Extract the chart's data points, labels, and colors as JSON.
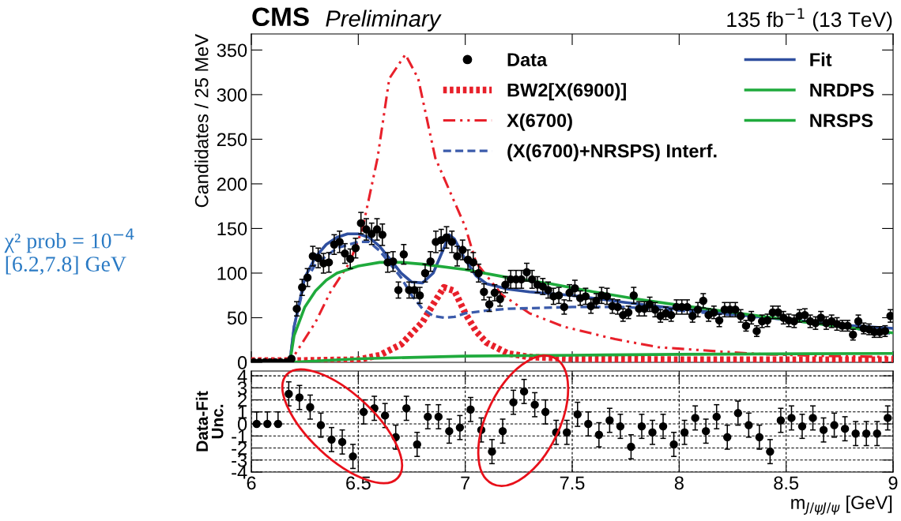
{
  "chart_data": [
    {
      "type": "line",
      "title": "CMS",
      "subtitle": "Preliminary",
      "ylabel": "Candidates / 25 MeV",
      "annotations": [
        "135 fb$^{−1}$ (13 TeV)",
        "χ² prob = 10$^{−4}$",
        "[6.2,7.8] GeV"
      ],
      "xlim": [
        6,
        9
      ],
      "xticks": [
        6,
        6.5,
        7,
        7.5,
        8,
        8.5,
        9
      ],
      "ylim": [
        0,
        368
      ],
      "yticks": [
        0,
        50,
        100,
        150,
        200,
        250,
        300,
        350
      ],
      "tick_labels": "y",
      "legend": "top right",
      "grid": false,
      "series": [
        {
          "name": "Data",
          "type": "scatter",
          "marker": "circle",
          "color": "#000000",
          "x": [
            6.0125,
            6.0375,
            6.0625,
            6.0875,
            6.1125,
            6.1375,
            6.1625,
            6.1875,
            6.2125,
            6.2375,
            6.2625,
            6.2875,
            6.3125,
            6.3375,
            6.3625,
            6.3875,
            6.4125,
            6.4375,
            6.4625,
            6.4875,
            6.5125,
            6.5375,
            6.5625,
            6.5875,
            6.6125,
            6.6375,
            6.6625,
            6.6875,
            6.7125,
            6.7375,
            6.7625,
            6.7875,
            6.8125,
            6.8375,
            6.8625,
            6.8875,
            6.9125,
            6.9375,
            6.9625,
            6.9875,
            7.0125,
            7.0375,
            7.0625,
            7.0875,
            7.1125,
            7.1375,
            7.1625,
            7.1875,
            7.2125,
            7.2375,
            7.2625,
            7.2875,
            7.3125,
            7.3375,
            7.3625,
            7.3875,
            7.4125,
            7.4375,
            7.4625,
            7.4875,
            7.5125,
            7.5375,
            7.5625,
            7.5875,
            7.6125,
            7.6375,
            7.6625,
            7.6875,
            7.7125,
            7.7375,
            7.7625,
            7.7875,
            7.8125,
            7.8375,
            7.8625,
            7.8875,
            7.9125,
            7.9375,
            7.9625,
            7.9875,
            8.0125,
            8.0375,
            8.0625,
            8.0875,
            8.1125,
            8.1375,
            8.1625,
            8.1875,
            8.2125,
            8.2375,
            8.2625,
            8.2875,
            8.3125,
            8.3375,
            8.3625,
            8.3875,
            8.4125,
            8.4375,
            8.4625,
            8.4875,
            8.5125,
            8.5375,
            8.5625,
            8.5875,
            8.6125,
            8.6375,
            8.6625,
            8.6875,
            8.7125,
            8.7375,
            8.7625,
            8.7875,
            8.8125,
            8.8375,
            8.8625,
            8.8875,
            8.9125,
            8.9375,
            8.9625,
            8.9875
          ],
          "values": [
            0,
            0,
            0,
            0,
            0,
            0,
            0,
            4,
            60,
            84,
            95,
            119,
            117,
            111,
            112,
            132,
            135,
            122,
            116,
            128,
            156,
            149,
            144,
            149,
            143,
            112,
            113,
            81,
            121,
            81,
            81,
            75,
            100,
            113,
            135,
            137,
            140,
            135,
            119,
            126,
            115,
            112,
            100,
            79,
            65,
            78,
            71,
            87,
            93,
            93,
            93,
            101,
            93,
            87,
            85,
            81,
            74,
            75,
            62,
            78,
            83,
            72,
            74,
            63,
            69,
            75,
            74,
            63,
            62,
            53,
            56,
            75,
            60,
            60,
            65,
            59,
            52,
            55,
            53,
            62,
            62,
            62,
            52,
            59,
            69,
            53,
            56,
            47,
            59,
            59,
            59,
            52,
            41,
            50,
            35,
            46,
            47,
            56,
            56,
            50,
            47,
            46,
            52,
            53,
            46,
            44,
            50,
            44,
            46,
            43,
            41,
            41,
            31,
            46,
            38,
            37,
            34,
            34,
            35,
            52
          ],
          "errors": [
            null,
            null,
            null,
            null,
            null,
            null,
            null,
            2,
            8,
            9,
            10,
            11,
            11,
            11,
            11,
            11,
            12,
            11,
            11,
            11,
            12,
            12,
            12,
            12,
            12,
            11,
            11,
            9,
            11,
            9,
            9,
            9,
            10,
            11,
            12,
            12,
            12,
            12,
            11,
            11,
            11,
            11,
            10,
            9,
            8,
            9,
            8,
            9,
            10,
            10,
            10,
            10,
            10,
            9,
            9,
            9,
            9,
            9,
            8,
            9,
            9,
            8,
            9,
            8,
            8,
            9,
            9,
            8,
            8,
            7,
            7,
            9,
            8,
            8,
            8,
            8,
            7,
            7,
            7,
            8,
            8,
            8,
            7,
            8,
            8,
            7,
            7,
            7,
            8,
            8,
            8,
            7,
            6,
            7,
            6,
            7,
            7,
            7,
            7,
            7,
            7,
            7,
            7,
            7,
            7,
            7,
            7,
            7,
            7,
            7,
            6,
            6,
            6,
            7,
            6,
            6,
            6,
            6,
            6,
            7
          ]
        },
        {
          "name": "Fit",
          "type": "line",
          "line_style": "solid",
          "color": "#2f4f9f",
          "x": [
            6.0,
            6.18,
            6.2,
            6.25,
            6.3,
            6.35,
            6.4,
            6.45,
            6.5,
            6.55,
            6.6,
            6.65,
            6.7,
            6.75,
            6.8,
            6.85,
            6.9,
            6.925,
            6.95,
            7.0,
            7.05,
            7.1,
            7.2,
            7.3,
            7.5,
            7.75,
            8.0,
            8.25,
            8.5,
            8.75,
            9.0
          ],
          "values": [
            0,
            0,
            40,
            95,
            118,
            132,
            140,
            144,
            144,
            140,
            130,
            115,
            100,
            90,
            89,
            100,
            128,
            143,
            138,
            115,
            97,
            88,
            82,
            79,
            75,
            67,
            60,
            54,
            48,
            42,
            38
          ]
        },
        {
          "name": "BW2[X(6900)]",
          "type": "line",
          "line_style": "dotted",
          "color": "#e8202a",
          "x": [
            6.0,
            6.2,
            6.5,
            6.6,
            6.7,
            6.8,
            6.85,
            6.9,
            6.95,
            7.0,
            7.05,
            7.1,
            7.2,
            7.3,
            7.5,
            8.0,
            9.0
          ],
          "values": [
            2,
            2,
            3,
            8,
            20,
            45,
            65,
            84,
            80,
            55,
            35,
            22,
            10,
            6,
            4,
            3,
            3
          ]
        },
        {
          "name": "X(6700)",
          "type": "line",
          "line_style": "dashdot",
          "color": "#e8202a",
          "x": [
            6.0,
            6.18,
            6.22,
            6.3,
            6.37,
            6.46,
            6.52,
            6.59,
            6.645,
            6.72,
            6.78,
            6.86,
            7.0,
            7.05,
            7.17,
            7.3,
            7.46,
            7.7,
            7.9,
            8.2,
            8.4,
            8.7,
            9.0
          ],
          "values": [
            0,
            0,
            15,
            45,
            79,
            112,
            150,
            229,
            318,
            345,
            318,
            229,
            152,
            112,
            76,
            55,
            40,
            26,
            17,
            12,
            9,
            7,
            6
          ]
        },
        {
          "name": "(X(6700)+NRSPS) Interf.",
          "type": "line",
          "line_style": "dashed",
          "color": "#3b5bab",
          "x": [
            6.0,
            6.18,
            6.2,
            6.25,
            6.3,
            6.4,
            6.5,
            6.55,
            6.6,
            6.7,
            6.75,
            6.8,
            6.85,
            6.9,
            6.95,
            7.0,
            7.1,
            7.2,
            7.5,
            7.75,
            8.0,
            8.5,
            9.0
          ],
          "values": [
            0,
            0,
            40,
            90,
            110,
            128,
            135,
            135,
            125,
            95,
            75,
            60,
            52,
            50,
            51,
            55,
            58,
            60,
            62,
            62,
            58,
            48,
            32
          ]
        },
        {
          "name": "NRDPS",
          "type": "line",
          "line_style": "solid",
          "color": "#1faa3c",
          "x": [
            6.0,
            6.18,
            6.5,
            7.0,
            7.5,
            8.0,
            9.0
          ],
          "values": [
            0,
            0,
            4,
            7,
            8,
            9,
            10
          ]
        },
        {
          "name": "NRSPS",
          "type": "line",
          "line_style": "solid",
          "color": "#1faa3c",
          "x": [
            6.0,
            6.18,
            6.2,
            6.25,
            6.3,
            6.35,
            6.4,
            6.5,
            6.6,
            6.7,
            6.8,
            7.0,
            7.2,
            7.4,
            7.6,
            7.8,
            8.0,
            8.25,
            8.5,
            8.75,
            9.0
          ],
          "values": [
            0,
            0,
            30,
            62,
            80,
            92,
            100,
            108,
            112,
            112,
            110,
            104,
            95,
            88,
            79,
            71,
            64,
            56,
            48,
            40,
            33
          ]
        }
      ]
    },
    {
      "type": "scatter",
      "ylabel": "Data-Fit\nUnc.",
      "xlabel": "m$_{J/ψJ/ψ}$ [GeV]",
      "xlim": [
        6,
        9
      ],
      "xticks": [
        6,
        6.5,
        7,
        7.5,
        8,
        8.5,
        9
      ],
      "ylim": [
        -4,
        4.4
      ],
      "yticks": [
        -4,
        -3,
        -2,
        -1,
        0,
        1,
        2,
        3,
        4
      ],
      "grid": true,
      "marker": "circle",
      "x": [
        6.025,
        6.075,
        6.125,
        6.175,
        6.225,
        6.275,
        6.325,
        6.375,
        6.425,
        6.475,
        6.525,
        6.575,
        6.625,
        6.675,
        6.725,
        6.775,
        6.825,
        6.875,
        6.925,
        6.975,
        7.025,
        7.075,
        7.125,
        7.175,
        7.225,
        7.275,
        7.325,
        7.375,
        7.425,
        7.475,
        7.525,
        7.575,
        7.625,
        7.675,
        7.725,
        7.775,
        7.825,
        7.875,
        7.925,
        7.975,
        8.025,
        8.075,
        8.125,
        8.175,
        8.225,
        8.275,
        8.325,
        8.375,
        8.425,
        8.475,
        8.525,
        8.575,
        8.625,
        8.675,
        8.725,
        8.775,
        8.825,
        8.875,
        8.925,
        8.975
      ],
      "values": [
        0,
        0,
        0,
        2.5,
        2.2,
        1.4,
        -0.1,
        -1.3,
        -1.5,
        -2.7,
        1.0,
        1.3,
        0.7,
        -1.1,
        1.3,
        -1.7,
        0.6,
        0.6,
        -0.6,
        -0.3,
        1.2,
        -0.5,
        -2.3,
        -0.6,
        1.8,
        2.7,
        1.6,
        1.0,
        -0.7,
        -0.7,
        0.8,
        0.0,
        -0.9,
        0.3,
        -0.2,
        -1.9,
        -0.2,
        -0.7,
        -0.2,
        -1.7,
        -0.7,
        0.5,
        -0.6,
        0.6,
        -1.1,
        0.9,
        -0.1,
        -1.1,
        -2.3,
        0.3,
        0.5,
        -0.2,
        0.5,
        -0.5,
        -0.1,
        -0.4,
        -0.8,
        -0.8,
        -0.8,
        0.5
      ],
      "errors": [
        [
          0,
          1
        ],
        [
          0,
          1
        ],
        [
          0,
          1
        ],
        1,
        1,
        1,
        1,
        1,
        1,
        1,
        1,
        1,
        1,
        1,
        1,
        1,
        1,
        1,
        1,
        1,
        1,
        1,
        1,
        1,
        1,
        1,
        1,
        1,
        1,
        1,
        1,
        1,
        1,
        1,
        1,
        1,
        1,
        1,
        1,
        1,
        1,
        1,
        1,
        1,
        1,
        1,
        1,
        1,
        1,
        1,
        1,
        1,
        1,
        1,
        1,
        1,
        1,
        1,
        1,
        1
      ]
    }
  ]
}
